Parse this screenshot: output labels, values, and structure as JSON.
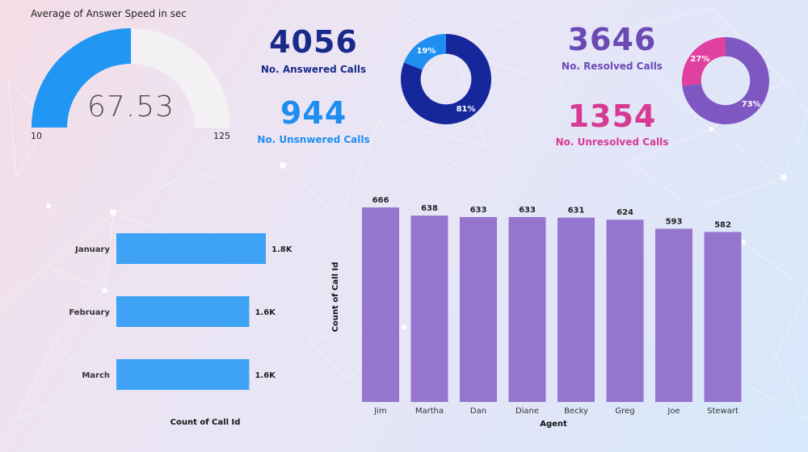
{
  "colors": {
    "gauge_fill": "#2196f3",
    "gauge_track": "#f3f1f3",
    "answered": "#16279b",
    "answered_text": "#1a2a8a",
    "unanswered": "#1f8ef1",
    "resolved": "#7e57c2",
    "resolved_text": "#6c4ab6",
    "unresolved": "#e040a0",
    "unresolved_text": "#d63a92",
    "month_bar": "#3ea2f5",
    "agent_bar": "#9575cd"
  },
  "gauge": {
    "title": "Average of Answer Speed in sec",
    "value": 67.53,
    "value_text": "67.53",
    "min": 10,
    "max": 125,
    "min_text": "10",
    "max_text": "125"
  },
  "kpis": {
    "answered": {
      "value": "4056",
      "label": "No. Answered Calls"
    },
    "unanswered": {
      "value": "944",
      "label": "No. Unsnwered Calls"
    },
    "resolved": {
      "value": "3646",
      "label": "No. Resolved Calls"
    },
    "unresolved": {
      "value": "1354",
      "label": "No. Unresolved Calls"
    }
  },
  "chart_data": [
    {
      "type": "pie",
      "variant": "donut",
      "categories": [
        "Answered",
        "Unanswered"
      ],
      "values": [
        81,
        19
      ],
      "labels": [
        "81%",
        "19%"
      ]
    },
    {
      "type": "pie",
      "variant": "donut",
      "categories": [
        "Resolved",
        "Unresolved"
      ],
      "values": [
        73,
        27
      ],
      "labels": [
        "73%",
        "27%"
      ]
    },
    {
      "type": "bar",
      "orientation": "horizontal",
      "categories": [
        "January",
        "February",
        "March"
      ],
      "values": [
        1800,
        1600,
        1600
      ],
      "labels": [
        "1.8K",
        "1.6K",
        "1.6K"
      ],
      "xlabel": "Count of Call Id",
      "ylabel": ""
    },
    {
      "type": "bar",
      "orientation": "vertical",
      "categories": [
        "Jim",
        "Martha",
        "Dan",
        "Diane",
        "Becky",
        "Greg",
        "Joe",
        "Stewart"
      ],
      "values": [
        666,
        638,
        633,
        633,
        631,
        624,
        593,
        582
      ],
      "xlabel": "Agent",
      "ylabel": "Count of Call Id"
    }
  ]
}
